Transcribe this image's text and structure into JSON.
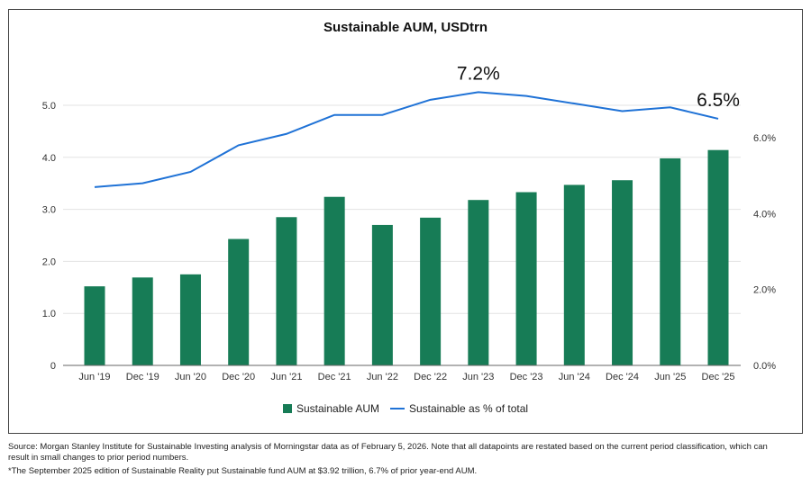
{
  "chart_data": {
    "type": "bar+line",
    "title": "Sustainable AUM, USDtrn",
    "categories": [
      "Jun '19",
      "Dec '19",
      "Jun '20",
      "Dec '20",
      "Jun '21",
      "Dec '21",
      "Jun '22",
      "Dec '22",
      "Jun '23",
      "Dec '23",
      "Jun '24",
      "Dec '24",
      "Jun '25",
      "Dec '25"
    ],
    "series": [
      {
        "name": "Sustainable AUM",
        "type": "bar",
        "axis": "left",
        "color": "#177c56",
        "values": [
          1.52,
          1.69,
          1.75,
          2.43,
          2.85,
          3.24,
          2.7,
          2.84,
          3.18,
          3.33,
          3.47,
          3.56,
          3.98,
          4.14
        ]
      },
      {
        "name": "Sustainable as % of total",
        "type": "line",
        "axis": "right",
        "color": "#1f72d6",
        "values": [
          4.7,
          4.8,
          5.1,
          5.8,
          6.1,
          6.6,
          6.6,
          7.0,
          7.2,
          7.1,
          6.9,
          6.7,
          6.8,
          6.5
        ]
      }
    ],
    "left_axis": {
      "ticks": [
        "0",
        "1.0",
        "2.0",
        "3.0",
        "4.0",
        "5.0"
      ],
      "ylim": [
        0,
        5.0
      ]
    },
    "right_axis": {
      "ticks": [
        "0.0%",
        "2.0%",
        "4.0%",
        "6.0%"
      ],
      "ylim": [
        0,
        6.0
      ]
    },
    "annotations": [
      {
        "category": "Jun '23",
        "text": "7.2%"
      },
      {
        "category": "Dec '25",
        "text": "6.5%"
      }
    ],
    "grid": true,
    "legend": "bottom"
  },
  "footnotes": {
    "source": "Source: Morgan Stanley Institute for Sustainable Investing analysis of Morningstar data as of February 5, 2026. Note that all datapoints are restated based on the current period classification, which can result in small changes to prior period numbers.",
    "note": "*The September 2025 edition of Sustainable Reality put Sustainable fund AUM at $3.92 trillion, 6.7% of prior year-end AUM."
  }
}
